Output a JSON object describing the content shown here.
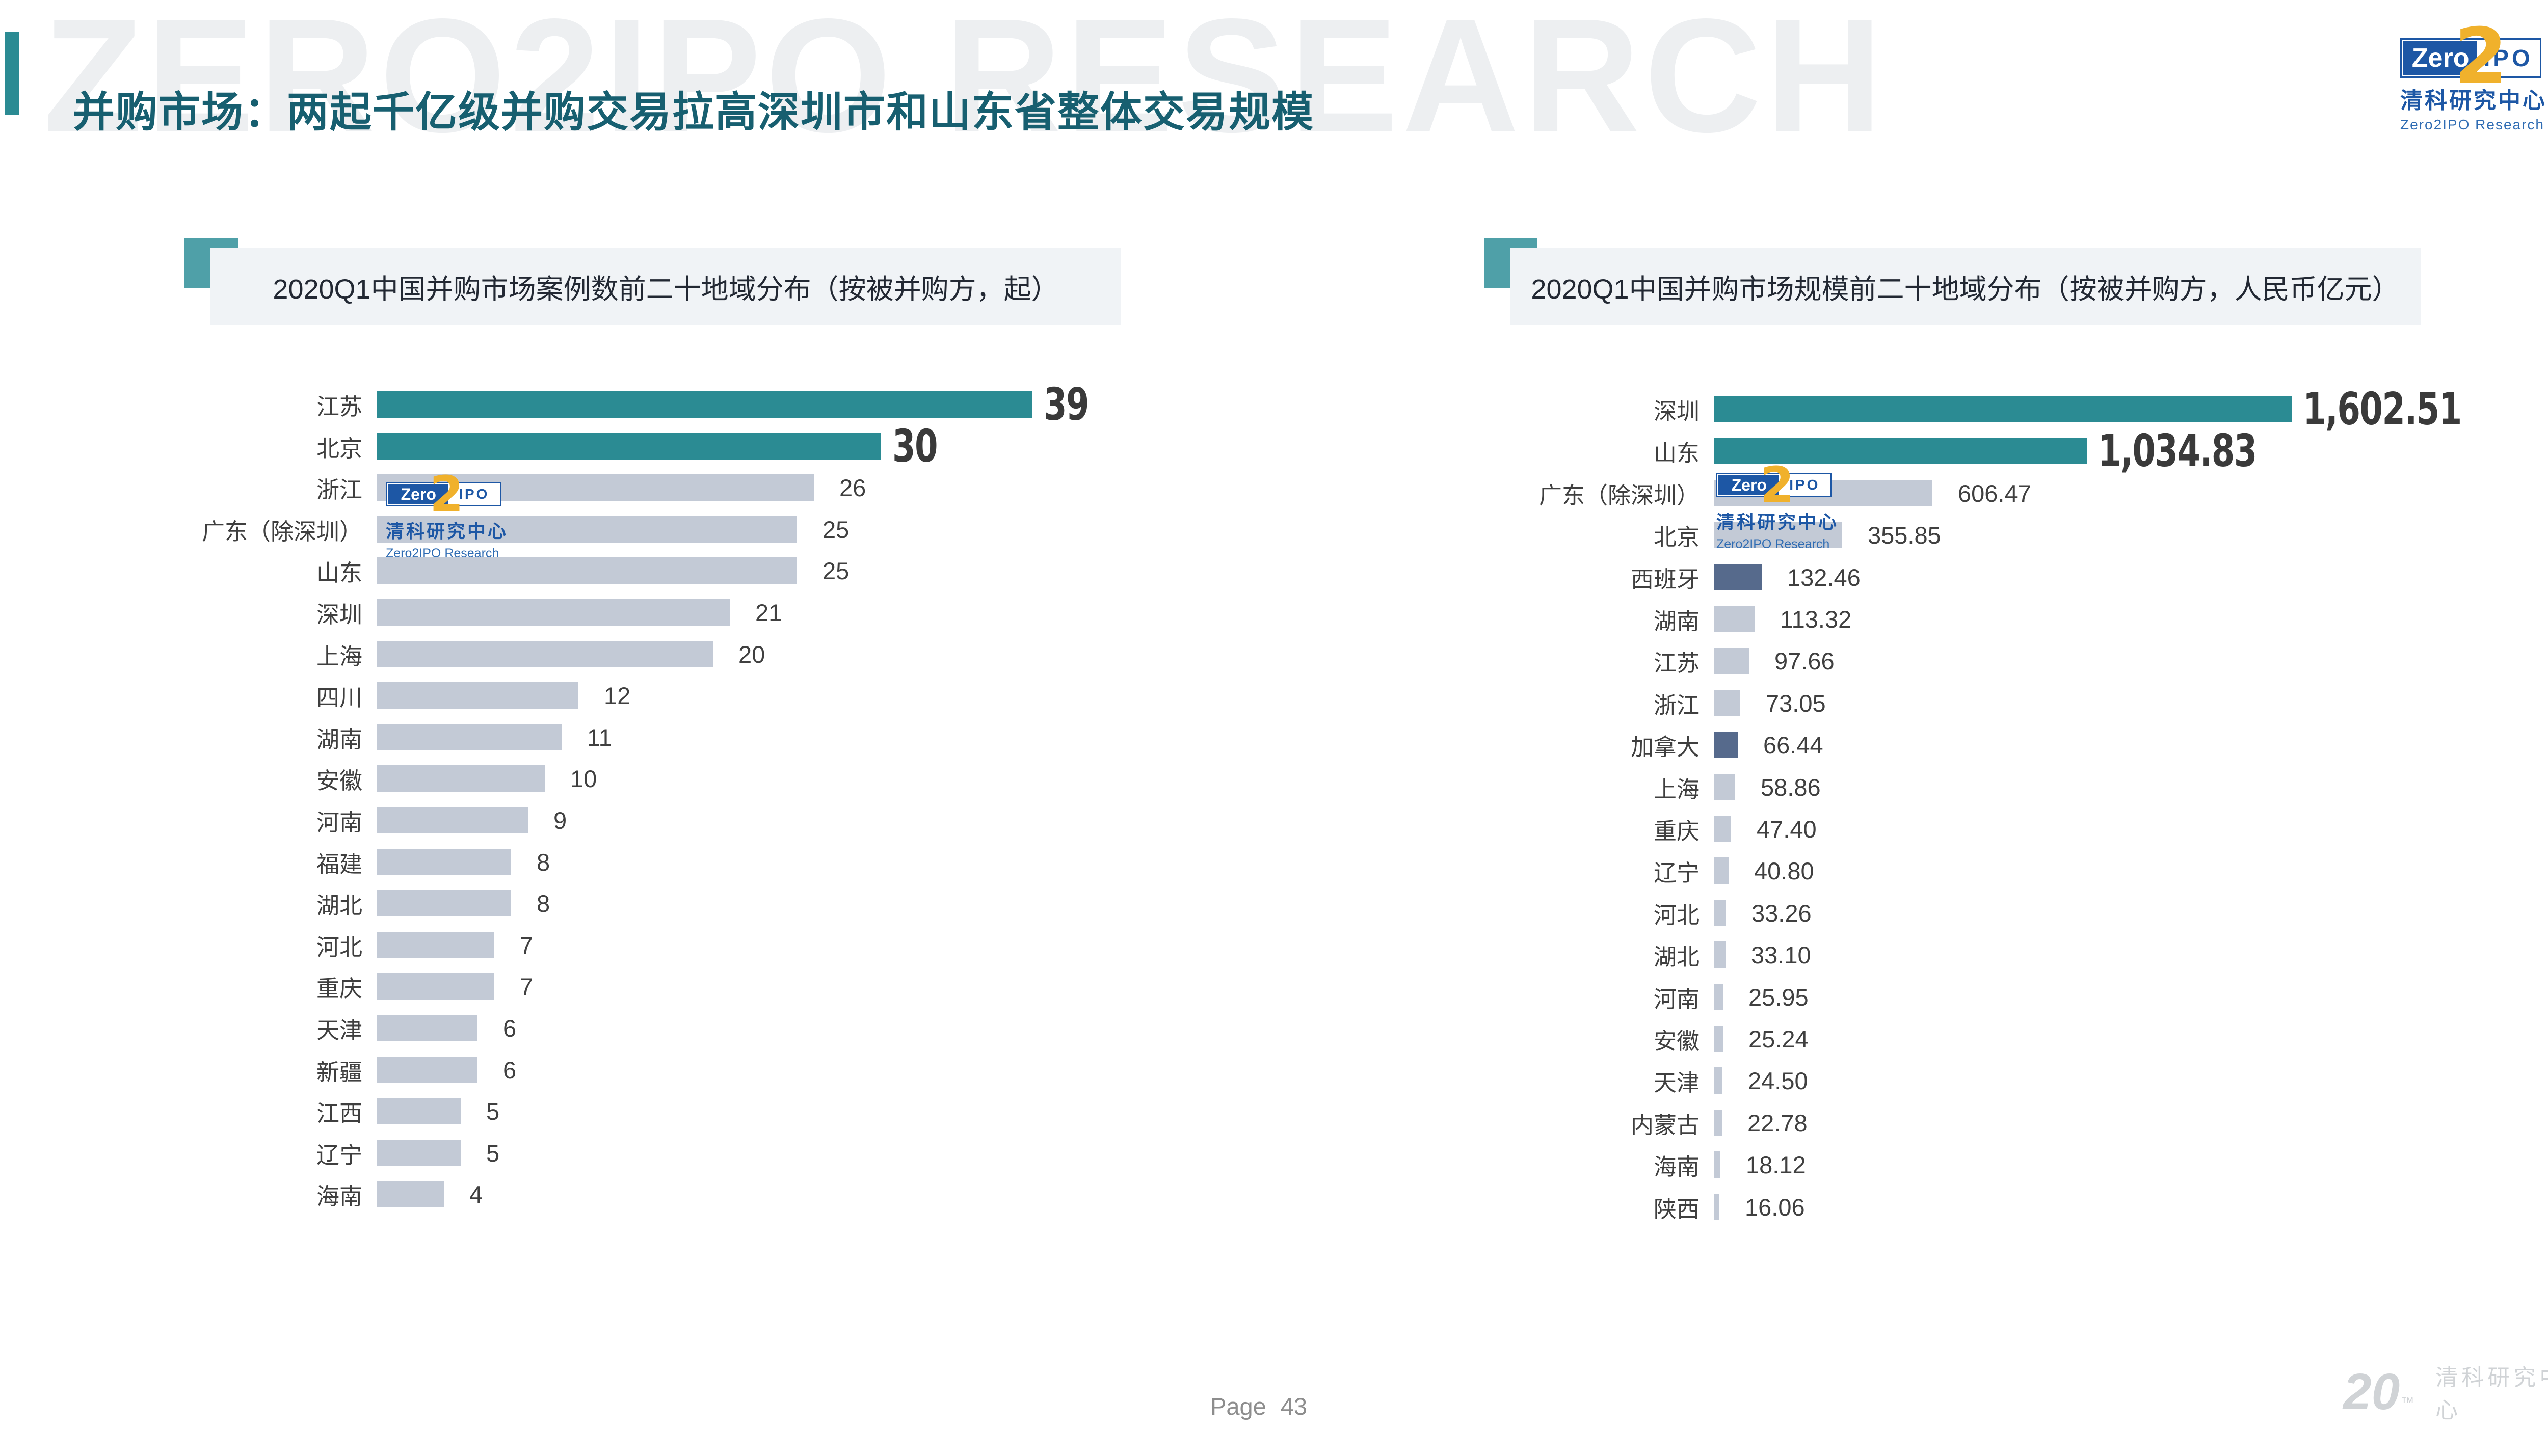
{
  "slide": {
    "title": "并购市场：两起千亿级并购交易拉高深圳市和山东省整体交易规模",
    "watermark_text": "ZERO2IPO RESEARCH",
    "page_label": "Page",
    "page_number": "43"
  },
  "branding": {
    "logo_zero": "Zero",
    "logo_two": "2",
    "logo_ipo": "IPO",
    "org_cn": "清科研究中心",
    "org_en": "Zero2IPO Research",
    "anniversary_num": "20",
    "anniversary_tm": "™",
    "anniversary_cn": "清科研究中心",
    "colors": {
      "blue": "#1d57a5",
      "yellow": "#f0b12c",
      "gray": "#d0d3d6"
    }
  },
  "chart_data": [
    {
      "type": "bar",
      "orientation": "horizontal",
      "title": "2020Q1中国并购市场案例数前二十地域分布（按被并购方，起）",
      "unit": "起",
      "categories": [
        "江苏",
        "北京",
        "浙江",
        "广东（除深圳）",
        "山东",
        "深圳",
        "上海",
        "四川",
        "湖南",
        "安徽",
        "河南",
        "福建",
        "湖北",
        "河北",
        "重庆",
        "天津",
        "新疆",
        "江西",
        "辽宁",
        "海南"
      ],
      "values": [
        39,
        30,
        26,
        25,
        25,
        21,
        20,
        12,
        11,
        10,
        9,
        8,
        8,
        7,
        7,
        6,
        6,
        5,
        5,
        4
      ],
      "value_labels": [
        "39",
        "30",
        "26",
        "25",
        "25",
        "21",
        "20",
        "12",
        "11",
        "10",
        "9",
        "8",
        "8",
        "7",
        "7",
        "6",
        "6",
        "5",
        "5",
        "4"
      ],
      "highlight_top": 2,
      "foreign_indices": [],
      "colors": {
        "highlight": "#2b8b93",
        "normal": "#c3cad6",
        "foreign": "#566a8c"
      },
      "xlim": [
        0,
        39
      ],
      "grid": false,
      "legend": null
    },
    {
      "type": "bar",
      "orientation": "horizontal",
      "title": "2020Q1中国并购市场规模前二十地域分布（按被并购方，人民币亿元）",
      "unit": "人民币亿元",
      "categories": [
        "深圳",
        "山东",
        "广东（除深圳）",
        "北京",
        "西班牙",
        "湖南",
        "江苏",
        "浙江",
        "加拿大",
        "上海",
        "重庆",
        "辽宁",
        "河北",
        "湖北",
        "河南",
        "安徽",
        "天津",
        "内蒙古",
        "海南",
        "陕西"
      ],
      "values": [
        1602.51,
        1034.83,
        606.47,
        355.85,
        132.46,
        113.32,
        97.66,
        73.05,
        66.44,
        58.86,
        47.4,
        40.8,
        33.26,
        33.1,
        25.95,
        25.24,
        24.5,
        22.78,
        18.12,
        16.06
      ],
      "value_labels": [
        "1,602.51",
        "1,034.83",
        "606.47",
        "355.85",
        "132.46",
        "113.32",
        "97.66",
        "73.05",
        "66.44",
        "58.86",
        "47.40",
        "40.80",
        "33.26",
        "33.10",
        "25.95",
        "25.24",
        "24.50",
        "22.78",
        "18.12",
        "16.06"
      ],
      "highlight_top": 2,
      "foreign_indices": [
        4,
        8
      ],
      "colors": {
        "highlight": "#2b8b93",
        "normal": "#c3cad6",
        "foreign": "#566a8c"
      },
      "xlim": [
        0,
        1602.51
      ],
      "grid": false,
      "legend": null
    }
  ]
}
